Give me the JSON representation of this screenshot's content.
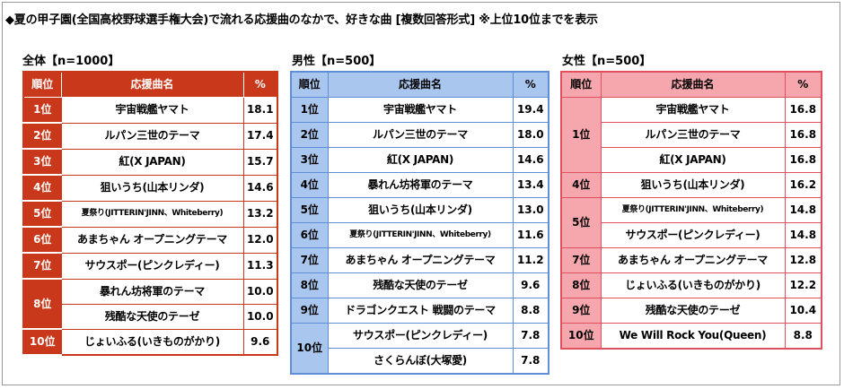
{
  "title": "◆夏の甲子園(全国高校野球選手権大会)で流れる応援曲のなかで、好きな曲 [複数回答形式] ※上位10位までを表示",
  "headers": {
    "rank": "順位",
    "song": "応援曲名",
    "pct": "%"
  },
  "total": {
    "label": "全体【n=1000】",
    "rows": [
      {
        "rank": "1位",
        "song": "宇宙戦艦ヤマト",
        "pct": "18.1"
      },
      {
        "rank": "2位",
        "song": "ルパン三世のテーマ",
        "pct": "17.4"
      },
      {
        "rank": "3位",
        "song": "紅(X JAPAN)",
        "pct": "15.7"
      },
      {
        "rank": "4位",
        "song": "狙いうち(山本リンダ)",
        "pct": "14.6"
      },
      {
        "rank": "5位",
        "song": "夏祭り(JITTERIN'JINN、Whiteberry)",
        "pct": "13.2"
      },
      {
        "rank": "6位",
        "song": "あまちゃん オープニングテーマ",
        "pct": "12.0"
      },
      {
        "rank": "7位",
        "song": "サウスポー(ピンクレディー)",
        "pct": "11.3"
      },
      {
        "rank": "8位",
        "song": "暴れん坊将軍のテーマ",
        "pct": "10.0"
      },
      {
        "rank": "",
        "song": "残酷な天使のテーゼ",
        "pct": "10.0"
      },
      {
        "rank": "10位",
        "song": "じょいふる(いきものがかり)",
        "pct": "9.6"
      }
    ]
  },
  "male": {
    "label": "男性【n=500】",
    "rows": [
      {
        "rank": "1位",
        "song": "宇宙戦艦ヤマト",
        "pct": "19.4"
      },
      {
        "rank": "2位",
        "song": "ルパン三世のテーマ",
        "pct": "18.0"
      },
      {
        "rank": "3位",
        "song": "紅(X JAPAN)",
        "pct": "14.6"
      },
      {
        "rank": "4位",
        "song": "暴れん坊将軍のテーマ",
        "pct": "13.4"
      },
      {
        "rank": "5位",
        "song": "狙いうち(山本リンダ)",
        "pct": "13.0"
      },
      {
        "rank": "6位",
        "song": "夏祭り(JITTERIN'JINN、Whiteberry)",
        "pct": "11.6"
      },
      {
        "rank": "7位",
        "song": "あまちゃん オープニングテーマ",
        "pct": "11.2"
      },
      {
        "rank": "8位",
        "song": "残酷な天使のテーゼ",
        "pct": "9.6"
      },
      {
        "rank": "9位",
        "song": "ドラゴンクエスト 戦闘のテーマ",
        "pct": "8.8"
      },
      {
        "rank": "10位",
        "song": "サウスポー(ピンクレディー)",
        "pct": "7.8"
      },
      {
        "rank": "",
        "song": "さくらんぼ(大塚愛)",
        "pct": "7.8"
      }
    ]
  },
  "female": {
    "label": "女性【n=500】",
    "rows": [
      {
        "rank": "1位",
        "song": "宇宙戦艦ヤマト",
        "pct": "16.8"
      },
      {
        "rank": "",
        "song": "ルパン三世のテーマ",
        "pct": "16.8"
      },
      {
        "rank": "",
        "song": "紅(X JAPAN)",
        "pct": "16.8"
      },
      {
        "rank": "4位",
        "song": "狙いうち(山本リンダ)",
        "pct": "16.2"
      },
      {
        "rank": "5位",
        "song": "夏祭り(JITTERIN'JINN、Whiteberry)",
        "pct": "14.8"
      },
      {
        "rank": "",
        "song": "サウスポー(ピンクレディー)",
        "pct": "14.8"
      },
      {
        "rank": "7位",
        "song": "あまちゃん オープニングテーマ",
        "pct": "12.8"
      },
      {
        "rank": "8位",
        "song": "じょいふる(いきものがかり)",
        "pct": "12.2"
      },
      {
        "rank": "9位",
        "song": "残酷な天使のテーゼ",
        "pct": "10.4"
      },
      {
        "rank": "10位",
        "song": "We Will Rock You(Queen)",
        "pct": "8.8"
      }
    ]
  },
  "colors": {
    "total": "#c9381a",
    "male": "#5f8ed6",
    "female": "#e0505f"
  }
}
